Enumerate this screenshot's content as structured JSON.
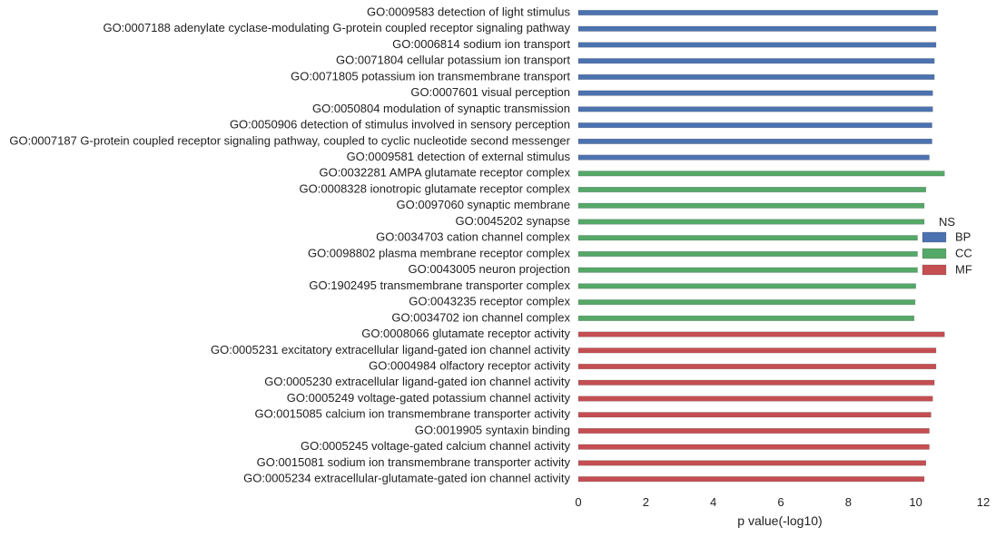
{
  "chart_data": {
    "type": "bar",
    "orientation": "horizontal",
    "title": "",
    "xlabel": "p value(-log10)",
    "ylabel": "",
    "xlim": [
      0,
      12
    ],
    "x_ticks": [
      0,
      2,
      4,
      6,
      8,
      10,
      12
    ],
    "grid": false,
    "legend": {
      "title": "NS",
      "placement": "right",
      "entries": [
        {
          "label": "BP",
          "color": "#4c72b0"
        },
        {
          "label": "CC",
          "color": "#55a868"
        },
        {
          "label": "MF",
          "color": "#c44e52"
        }
      ]
    },
    "bars": [
      {
        "label": "GO:0009583 detection of light stimulus",
        "group": "BP",
        "value": 10.65
      },
      {
        "label": "GO:0007188 adenylate cyclase-modulating G-protein coupled receptor signaling pathway",
        "group": "BP",
        "value": 10.6
      },
      {
        "label": "GO:0006814 sodium ion transport",
        "group": "BP",
        "value": 10.6
      },
      {
        "label": "GO:0071804 cellular potassium ion transport",
        "group": "BP",
        "value": 10.55
      },
      {
        "label": "GO:0071805 potassium ion transmembrane transport",
        "group": "BP",
        "value": 10.55
      },
      {
        "label": "GO:0007601 visual perception",
        "group": "BP",
        "value": 10.5
      },
      {
        "label": "GO:0050804 modulation of synaptic transmission",
        "group": "BP",
        "value": 10.5
      },
      {
        "label": "GO:0050906 detection of stimulus involved in sensory perception",
        "group": "BP",
        "value": 10.48
      },
      {
        "label": "GO:0007187 G-protein coupled receptor signaling pathway, coupled to cyclic nucleotide second messenger",
        "group": "BP",
        "value": 10.48
      },
      {
        "label": "GO:0009581 detection of external stimulus",
        "group": "BP",
        "value": 10.4
      },
      {
        "label": "GO:0032281 AMPA glutamate receptor complex",
        "group": "CC",
        "value": 10.85
      },
      {
        "label": "GO:0008328 ionotropic glutamate receptor complex",
        "group": "CC",
        "value": 10.3
      },
      {
        "label": "GO:0097060 synaptic membrane",
        "group": "CC",
        "value": 10.25
      },
      {
        "label": "GO:0045202 synapse",
        "group": "CC",
        "value": 10.25
      },
      {
        "label": "GO:0034703 cation channel complex",
        "group": "CC",
        "value": 10.05
      },
      {
        "label": "GO:0098802 plasma membrane receptor complex",
        "group": "CC",
        "value": 10.05
      },
      {
        "label": "GO:0043005 neuron projection",
        "group": "CC",
        "value": 10.05
      },
      {
        "label": "GO:1902495 transmembrane transporter complex",
        "group": "CC",
        "value": 10.0
      },
      {
        "label": "GO:0043235 receptor complex",
        "group": "CC",
        "value": 9.98
      },
      {
        "label": "GO:0034702 ion channel complex",
        "group": "CC",
        "value": 9.95
      },
      {
        "label": "GO:0008066 glutamate receptor activity",
        "group": "MF",
        "value": 10.85
      },
      {
        "label": "GO:0005231 excitatory extracellular ligand-gated ion channel activity",
        "group": "MF",
        "value": 10.6
      },
      {
        "label": "GO:0004984 olfactory receptor activity",
        "group": "MF",
        "value": 10.6
      },
      {
        "label": "GO:0005230 extracellular ligand-gated ion channel activity",
        "group": "MF",
        "value": 10.55
      },
      {
        "label": "GO:0005249 voltage-gated potassium channel activity",
        "group": "MF",
        "value": 10.5
      },
      {
        "label": "GO:0015085 calcium ion transmembrane transporter activity",
        "group": "MF",
        "value": 10.45
      },
      {
        "label": "GO:0019905 syntaxin binding",
        "group": "MF",
        "value": 10.4
      },
      {
        "label": "GO:0005245 voltage-gated calcium channel activity",
        "group": "MF",
        "value": 10.4
      },
      {
        "label": "GO:0015081 sodium ion transmembrane transporter activity",
        "group": "MF",
        "value": 10.3
      },
      {
        "label": "GO:0005234 extracellular-glutamate-gated ion channel activity",
        "group": "MF",
        "value": 10.25
      }
    ]
  }
}
